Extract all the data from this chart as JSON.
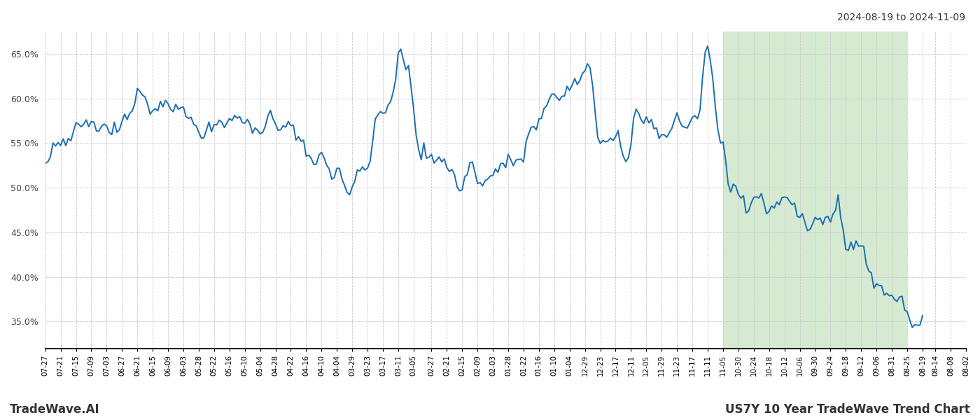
{
  "title_top_right": "2024-08-19 to 2024-11-09",
  "bottom_left": "TradeWave.AI",
  "bottom_right": "US7Y 10 Year TradeWave Trend Chart",
  "ylim": [
    0.32,
    0.675
  ],
  "yticks": [
    0.35,
    0.4,
    0.45,
    0.5,
    0.55,
    0.6,
    0.65
  ],
  "ytick_labels": [
    "35.0%",
    "40.0%",
    "45.0%",
    "50.0%",
    "55.0%",
    "60.0%",
    "65.0%"
  ],
  "line_color": "#1a6eb5",
  "bg_color": "#ffffff",
  "grid_color": "#c8c8c8",
  "shade_color": "#d6ead2",
  "x_labels": [
    "08-19",
    "08-25",
    "08-31",
    "09-06",
    "09-12",
    "09-18",
    "09-24",
    "09-30",
    "10-06",
    "10-12",
    "10-18",
    "10-24",
    "10-30",
    "11-05",
    "11-11",
    "11-17",
    "11-23",
    "11-29",
    "12-05",
    "12-11",
    "12-17",
    "12-23",
    "12-29",
    "01-04",
    "01-10",
    "01-16",
    "01-22",
    "01-28",
    "02-03",
    "02-09",
    "02-15",
    "02-21",
    "02-27",
    "03-05",
    "03-11",
    "03-17",
    "03-23",
    "03-29",
    "04-04",
    "04-10",
    "04-16",
    "04-22",
    "04-28",
    "05-04",
    "05-10",
    "05-16",
    "05-22",
    "05-28",
    "06-03",
    "06-09",
    "06-15",
    "06-21",
    "06-27",
    "07-03",
    "07-09",
    "07-15",
    "07-21",
    "07-27",
    "08-02",
    "08-08",
    "08-14"
  ]
}
